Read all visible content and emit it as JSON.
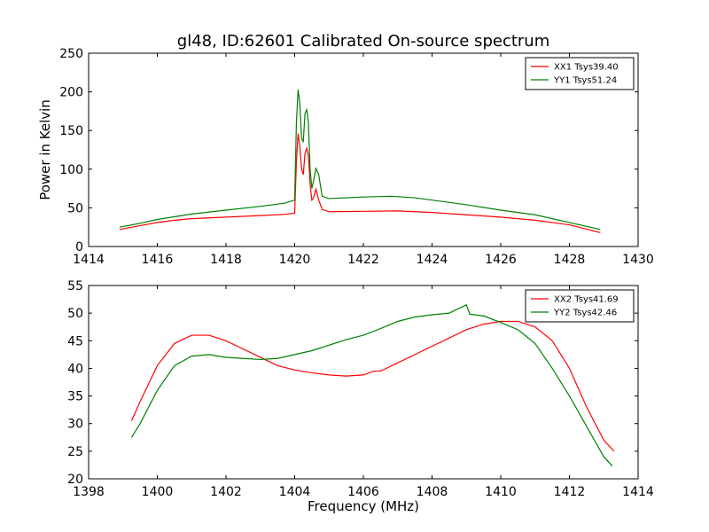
{
  "figure": {
    "title": "gl48, ID:62601 Calibrated On-source spectrum",
    "ylabel": "Power in Kelvin",
    "xlabel": "Frequency (MHz)"
  },
  "chart_data": [
    {
      "type": "line",
      "title": "gl48, ID:62601 Calibrated On-source spectrum",
      "ylabel": "Power in Kelvin",
      "xlabel": "",
      "xlim": [
        1414,
        1430
      ],
      "ylim": [
        0,
        250
      ],
      "xticks": [
        "1414",
        "1416",
        "1418",
        "1420",
        "1422",
        "1424",
        "1426",
        "1428",
        "1430"
      ],
      "yticks": [
        "0",
        "50",
        "100",
        "150",
        "200",
        "250"
      ],
      "legend": "top-right",
      "grid": false,
      "series": [
        {
          "name": "XX1 Tsys39.40",
          "color": "#ff0000",
          "points": [
            [
              1414.9,
              22
            ],
            [
              1415.5,
              27
            ],
            [
              1416,
              31
            ],
            [
              1416.5,
              34
            ],
            [
              1417,
              36
            ],
            [
              1418,
              38
            ],
            [
              1419,
              40
            ],
            [
              1419.7,
              41.5
            ],
            [
              1420,
              43
            ],
            [
              1420.05,
              110
            ],
            [
              1420.1,
              146
            ],
            [
              1420.15,
              130
            ],
            [
              1420.2,
              100
            ],
            [
              1420.25,
              93
            ],
            [
              1420.3,
              120
            ],
            [
              1420.35,
              127
            ],
            [
              1420.4,
              118
            ],
            [
              1420.45,
              80
            ],
            [
              1420.5,
              60
            ],
            [
              1420.55,
              63
            ],
            [
              1420.62,
              74
            ],
            [
              1420.7,
              60
            ],
            [
              1420.8,
              48
            ],
            [
              1421,
              45
            ],
            [
              1422,
              45.5
            ],
            [
              1423,
              46
            ],
            [
              1424,
              44
            ],
            [
              1425,
              41
            ],
            [
              1426,
              38
            ],
            [
              1427,
              34
            ],
            [
              1428,
              28
            ],
            [
              1428.9,
              18
            ]
          ]
        },
        {
          "name": "YY1 Tsys51.24",
          "color": "#008000",
          "points": [
            [
              1414.9,
              25
            ],
            [
              1415.5,
              30
            ],
            [
              1416,
              35
            ],
            [
              1417,
              42
            ],
            [
              1418,
              47
            ],
            [
              1419,
              52
            ],
            [
              1419.7,
              56
            ],
            [
              1420,
              60
            ],
            [
              1420.05,
              160
            ],
            [
              1420.1,
              203
            ],
            [
              1420.15,
              185
            ],
            [
              1420.2,
              140
            ],
            [
              1420.25,
              135
            ],
            [
              1420.3,
              172
            ],
            [
              1420.35,
              177
            ],
            [
              1420.4,
              160
            ],
            [
              1420.45,
              100
            ],
            [
              1420.5,
              75
            ],
            [
              1420.55,
              85
            ],
            [
              1420.62,
              101
            ],
            [
              1420.7,
              93
            ],
            [
              1420.8,
              65
            ],
            [
              1421,
              62
            ],
            [
              1422,
              64
            ],
            [
              1422.8,
              65
            ],
            [
              1423.5,
              63
            ],
            [
              1424,
              60
            ],
            [
              1425,
              54
            ],
            [
              1426,
              47
            ],
            [
              1427,
              41
            ],
            [
              1428,
              31
            ],
            [
              1428.9,
              22
            ]
          ]
        }
      ]
    },
    {
      "type": "line",
      "title": "",
      "ylabel": "",
      "xlabel": "Frequency (MHz)",
      "xlim": [
        1398,
        1414
      ],
      "ylim": [
        20,
        55
      ],
      "xticks": [
        "1398",
        "1400",
        "1402",
        "1404",
        "1406",
        "1408",
        "1410",
        "1412",
        "1414"
      ],
      "yticks": [
        "20",
        "25",
        "30",
        "35",
        "40",
        "45",
        "50",
        "55"
      ],
      "legend": "top-right",
      "grid": false,
      "series": [
        {
          "name": "XX2 Tsys41.69",
          "color": "#ff0000",
          "points": [
            [
              1399.25,
              30.5
            ],
            [
              1399.5,
              34
            ],
            [
              1400,
              40.5
            ],
            [
              1400.5,
              44.5
            ],
            [
              1401,
              46
            ],
            [
              1401.5,
              46
            ],
            [
              1402,
              45
            ],
            [
              1402.5,
              43.5
            ],
            [
              1403,
              42
            ],
            [
              1403.5,
              40.5
            ],
            [
              1404,
              39.7
            ],
            [
              1404.5,
              39.2
            ],
            [
              1405,
              38.8
            ],
            [
              1405.5,
              38.6
            ],
            [
              1406,
              38.8
            ],
            [
              1406.3,
              39.5
            ],
            [
              1406.5,
              39.5
            ],
            [
              1407,
              41
            ],
            [
              1407.5,
              42.5
            ],
            [
              1408,
              44
            ],
            [
              1408.5,
              45.5
            ],
            [
              1409,
              47
            ],
            [
              1409.5,
              48
            ],
            [
              1410,
              48.5
            ],
            [
              1410.5,
              48.5
            ],
            [
              1411,
              47.5
            ],
            [
              1411.5,
              45
            ],
            [
              1412,
              40
            ],
            [
              1412.5,
              33
            ],
            [
              1413,
              27
            ],
            [
              1413.3,
              25
            ]
          ]
        },
        {
          "name": "YY2 Tsys42.46",
          "color": "#008000",
          "points": [
            [
              1399.25,
              27.5
            ],
            [
              1399.5,
              30
            ],
            [
              1400,
              36
            ],
            [
              1400.5,
              40.5
            ],
            [
              1401,
              42.2
            ],
            [
              1401.5,
              42.5
            ],
            [
              1402,
              42
            ],
            [
              1402.5,
              41.8
            ],
            [
              1403,
              41.6
            ],
            [
              1403.5,
              41.8
            ],
            [
              1404,
              42.5
            ],
            [
              1404.5,
              43.2
            ],
            [
              1405,
              44.2
            ],
            [
              1405.5,
              45.2
            ],
            [
              1406,
              46
            ],
            [
              1406.5,
              47.2
            ],
            [
              1407,
              48.5
            ],
            [
              1407.5,
              49.3
            ],
            [
              1408,
              49.7
            ],
            [
              1408.5,
              50
            ],
            [
              1409,
              51.5
            ],
            [
              1409.1,
              49.8
            ],
            [
              1409.5,
              49.5
            ],
            [
              1410,
              48.3
            ],
            [
              1410.5,
              47
            ],
            [
              1411,
              44.5
            ],
            [
              1411.5,
              40
            ],
            [
              1412,
              35
            ],
            [
              1412.5,
              29.5
            ],
            [
              1413,
              24
            ],
            [
              1413.25,
              22.3
            ]
          ]
        }
      ]
    }
  ]
}
